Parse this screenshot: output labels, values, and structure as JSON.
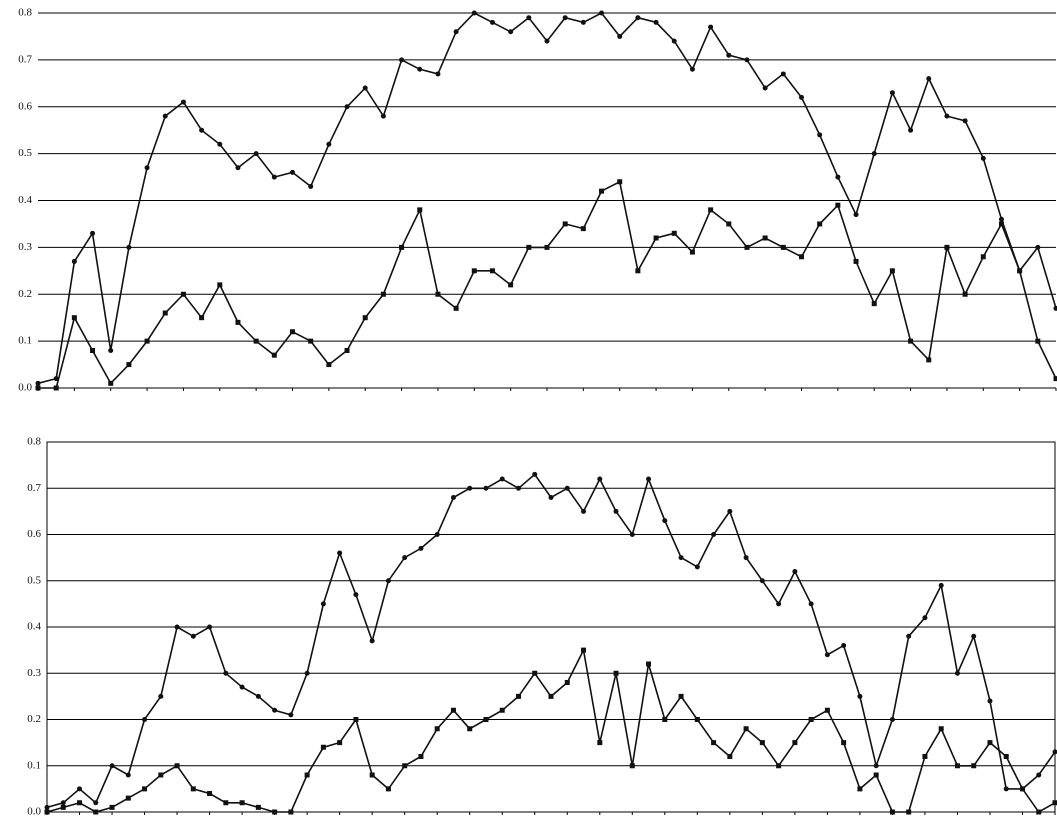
{
  "chart_data": [
    {
      "type": "line",
      "categories": [
        null,
        null,
        null,
        null,
        null,
        null,
        null,
        null,
        null,
        null,
        null,
        null,
        null,
        null,
        null,
        null,
        null,
        null,
        null,
        null,
        null,
        null,
        null,
        null,
        null,
        null,
        null,
        null,
        null,
        null,
        null,
        null,
        null,
        null,
        null,
        null,
        null,
        null,
        null,
        null,
        null,
        null,
        null,
        null,
        null,
        null,
        null,
        null,
        null,
        null,
        null,
        null,
        null,
        null,
        null,
        null,
        null
      ],
      "series": [
        {
          "color": "#111111",
          "marker": "circle",
          "values": [
            0.01,
            0.02,
            0.27,
            0.33,
            0.08,
            0.3,
            0.47,
            0.58,
            0.61,
            0.55,
            0.52,
            0.47,
            0.5,
            0.45,
            0.46,
            0.43,
            0.52,
            0.6,
            0.64,
            0.58,
            0.7,
            0.68,
            0.67,
            0.76,
            0.8,
            0.78,
            0.76,
            0.79,
            0.74,
            0.79,
            0.78,
            0.8,
            0.75,
            0.79,
            0.78,
            0.74,
            0.68,
            0.77,
            0.71,
            0.7,
            0.64,
            0.67,
            0.62,
            0.54,
            0.45,
            0.37,
            0.5,
            0.63,
            0.55,
            0.66,
            0.58,
            0.57,
            0.49,
            0.36,
            0.25,
            0.3,
            0.17
          ]
        },
        {
          "color": "#111111",
          "marker": "square",
          "values": [
            0.0,
            0.0,
            0.15,
            0.08,
            0.01,
            0.05,
            0.1,
            0.16,
            0.2,
            0.15,
            0.22,
            0.14,
            0.1,
            0.07,
            0.12,
            0.1,
            0.05,
            0.08,
            0.15,
            0.2,
            0.3,
            0.38,
            0.2,
            0.17,
            0.25,
            0.25,
            0.22,
            0.3,
            0.3,
            0.35,
            0.34,
            0.42,
            0.44,
            0.25,
            0.32,
            0.33,
            0.29,
            0.38,
            0.35,
            0.3,
            0.32,
            0.3,
            0.28,
            0.35,
            0.39,
            0.27,
            0.18,
            0.25,
            0.1,
            0.06,
            0.3,
            0.2,
            0.28,
            0.35,
            0.25,
            0.1,
            0.02
          ]
        }
      ],
      "ylim": [
        0,
        0.8
      ],
      "yticks": [
        {
          "value": 0,
          "label": "0.0"
        },
        {
          "value": 0.1,
          "label": "0.1"
        },
        {
          "value": 0.2,
          "label": "0.2"
        },
        {
          "value": 0.3,
          "label": "0.3"
        },
        {
          "value": 0.4,
          "label": "0.4"
        },
        {
          "value": 0.5,
          "label": "0.5"
        },
        {
          "value": 0.6,
          "label": "0.6"
        },
        {
          "value": 0.7,
          "label": "0.7"
        },
        {
          "value": 0.8,
          "label": "0.8"
        }
      ],
      "grid": true
    },
    {
      "type": "line",
      "categories": [
        null,
        null,
        null,
        null,
        null,
        null,
        null,
        null,
        null,
        null,
        null,
        null,
        null,
        null,
        null,
        null,
        null,
        null,
        null,
        null,
        null,
        null,
        null,
        null,
        null,
        null,
        null,
        null,
        null,
        null,
        null,
        null,
        null,
        null,
        null,
        null,
        null,
        null,
        null,
        null,
        null,
        null,
        null,
        null,
        null,
        null,
        null,
        null,
        null,
        null,
        null,
        null,
        null,
        null,
        null,
        null,
        null,
        null,
        null,
        null,
        null,
        null,
        null
      ],
      "series": [
        {
          "color": "#111111",
          "marker": "circle",
          "values": [
            0.01,
            0.02,
            0.05,
            0.02,
            0.1,
            0.08,
            0.2,
            0.25,
            0.4,
            0.38,
            0.4,
            0.3,
            0.27,
            0.25,
            0.22,
            0.21,
            0.3,
            0.45,
            0.56,
            0.47,
            0.37,
            0.5,
            0.55,
            0.57,
            0.6,
            0.68,
            0.7,
            0.7,
            0.72,
            0.7,
            0.73,
            0.68,
            0.7,
            0.65,
            0.72,
            0.65,
            0.6,
            0.72,
            0.63,
            0.55,
            0.53,
            0.6,
            0.65,
            0.55,
            0.5,
            0.45,
            0.52,
            0.45,
            0.34,
            0.36,
            0.25,
            0.1,
            0.2,
            0.38,
            0.42,
            0.49,
            0.3,
            0.38,
            0.24,
            0.05,
            0.05,
            0.08,
            0.13
          ]
        },
        {
          "color": "#111111",
          "marker": "square",
          "values": [
            0.0,
            0.01,
            0.02,
            0.0,
            0.01,
            0.03,
            0.05,
            0.08,
            0.1,
            0.05,
            0.04,
            0.02,
            0.02,
            0.01,
            0.0,
            0.0,
            0.08,
            0.14,
            0.15,
            0.2,
            0.08,
            0.05,
            0.1,
            0.12,
            0.18,
            0.22,
            0.18,
            0.2,
            0.22,
            0.25,
            0.3,
            0.25,
            0.28,
            0.35,
            0.15,
            0.3,
            0.1,
            0.32,
            0.2,
            0.25,
            0.2,
            0.15,
            0.12,
            0.18,
            0.15,
            0.1,
            0.15,
            0.2,
            0.22,
            0.15,
            0.05,
            0.08,
            0.0,
            0.0,
            0.12,
            0.18,
            0.1,
            0.1,
            0.15,
            0.12,
            0.05,
            0.0,
            0.02
          ]
        }
      ],
      "ylim": [
        0,
        0.8
      ],
      "yticks": [
        {
          "value": 0,
          "label": "0.0"
        },
        {
          "value": 0.1,
          "label": "0.1"
        },
        {
          "value": 0.2,
          "label": "0.2"
        },
        {
          "value": 0.3,
          "label": "0.3"
        },
        {
          "value": 0.4,
          "label": "0.4"
        },
        {
          "value": 0.5,
          "label": "0.5"
        },
        {
          "value": 0.6,
          "label": "0.6"
        },
        {
          "value": 0.7,
          "label": "0.7"
        },
        {
          "value": 0.8,
          "label": "0.8"
        }
      ],
      "grid": true,
      "frame": true
    }
  ]
}
